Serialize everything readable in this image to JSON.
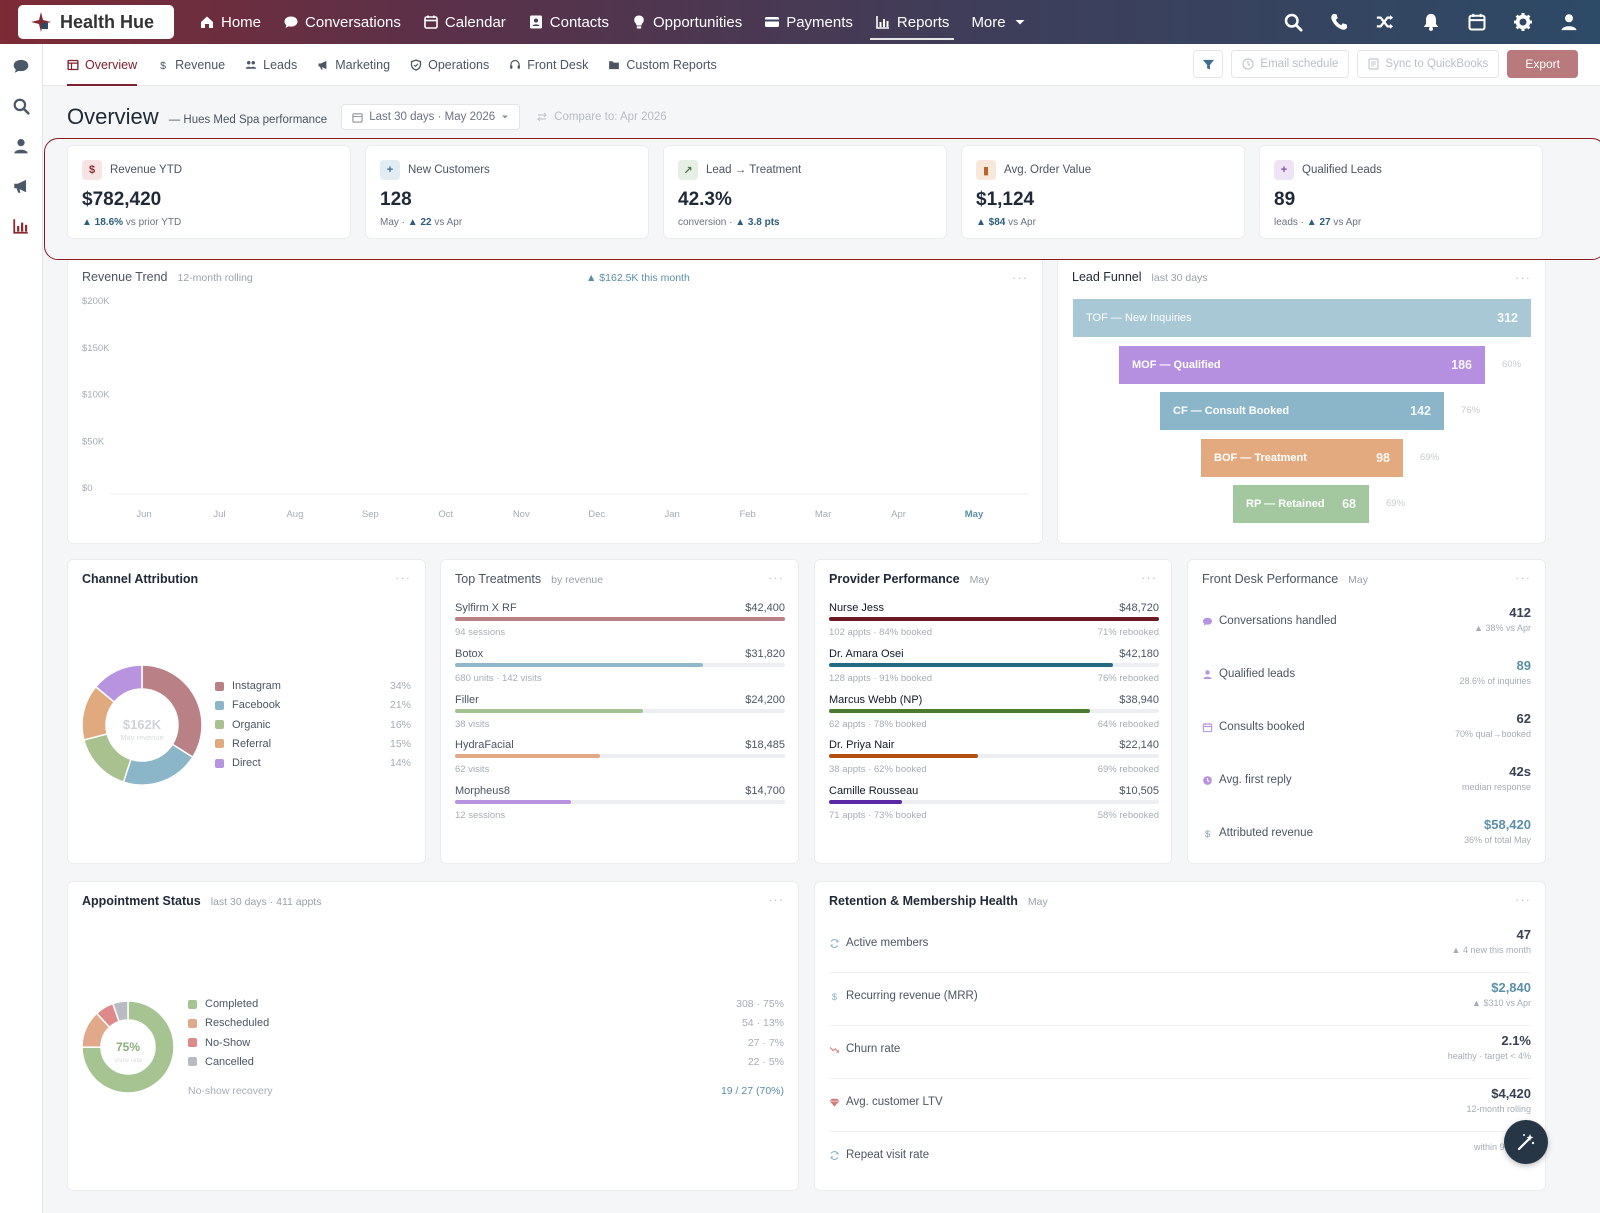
{
  "brand": {
    "name": "Health Hue"
  },
  "nav": [
    {
      "label": "Home",
      "icon": "home-icon"
    },
    {
      "label": "Conversations",
      "icon": "chat-icon"
    },
    {
      "label": "Calendar",
      "icon": "calendar-icon"
    },
    {
      "label": "Contacts",
      "icon": "contact-card-icon"
    },
    {
      "label": "Opportunities",
      "icon": "lightbulb-icon"
    },
    {
      "label": "Payments",
      "icon": "credit-card-icon"
    },
    {
      "label": "Reports",
      "icon": "bar-chart-icon",
      "active": true
    },
    {
      "label": "More",
      "icon": "chevron-down-icon"
    }
  ],
  "top_icons": [
    "search-icon",
    "phone-icon",
    "shuffle-icon",
    "bell-icon",
    "calendar-icon",
    "gear-icon",
    "user-icon"
  ],
  "rail_icons": [
    "chat-icon",
    "search-icon",
    "user-icon",
    "megaphone-icon",
    "bar-chart-icon"
  ],
  "tabs": [
    {
      "label": "Overview",
      "icon": "overview-icon",
      "active": true
    },
    {
      "label": "Revenue",
      "icon": "dollar-icon"
    },
    {
      "label": "Leads",
      "icon": "users-icon"
    },
    {
      "label": "Marketing",
      "icon": "megaphone-icon"
    },
    {
      "label": "Operations",
      "icon": "shield-icon"
    },
    {
      "label": "Front Desk",
      "icon": "headset-icon"
    },
    {
      "label": "Custom Reports",
      "icon": "folder-icon"
    }
  ],
  "actions": {
    "email_schedule": "Email schedule",
    "sync": "Sync to QuickBooks",
    "export": "Export"
  },
  "overview": {
    "title": "Overview",
    "subtitle": "— Hues Med Spa performance",
    "date_range": "Last 30 days · May 2026",
    "compare": "Compare to: Apr 2026"
  },
  "kpis": [
    {
      "label": "Revenue YTD",
      "icon": "$",
      "icon_bg": "#f6e3e4",
      "icon_fg": "#8c2a33",
      "value": "$782,420",
      "sub_pre": "",
      "sub_delta": "▲ 18.6%",
      "sub_post": " vs prior YTD"
    },
    {
      "label": "New Customers",
      "icon": "+",
      "icon_bg": "#e2edf3",
      "icon_fg": "#3f6f8f",
      "value": "128",
      "sub_pre": "May · ",
      "sub_delta": "▲ 22",
      "sub_post": " vs Apr"
    },
    {
      "label": "Lead → Treatment",
      "icon": "↗",
      "icon_bg": "#e5efe4",
      "icon_fg": "#4a7a45",
      "value": "42.3%",
      "sub_pre": "conversion · ",
      "sub_delta": "▲ 3.8 pts",
      "sub_post": ""
    },
    {
      "label": "Avg. Order Value",
      "icon": "▮",
      "icon_bg": "#f8e8dc",
      "icon_fg": "#b5652e",
      "value": "$1,124",
      "sub_pre": "",
      "sub_delta": "▲ $84",
      "sub_post": " vs Apr"
    },
    {
      "label": "Qualified Leads",
      "icon": "+",
      "icon_bg": "#efe4f6",
      "icon_fg": "#7c4ca8",
      "value": "89",
      "sub_pre": "leads · ",
      "sub_delta": "▲ 27",
      "sub_post": " vs Apr"
    }
  ],
  "revenue_trend": {
    "title": "Revenue Trend",
    "subtitle": "12-month rolling",
    "note": "▲ $162.5K this month"
  },
  "chart_data": [
    {
      "type": "line",
      "title": "Revenue Trend",
      "subtitle": "12-month rolling",
      "x": [
        "Jun",
        "Jul",
        "Aug",
        "Sep",
        "Oct",
        "Nov",
        "Dec",
        "Jan",
        "Feb",
        "Mar",
        "Apr",
        "May"
      ],
      "y_ticks": [
        "$200K",
        "$150K",
        "$100K",
        "$50K",
        "$0"
      ],
      "ylim": [
        0,
        200000
      ],
      "series": [],
      "grid": false
    },
    {
      "type": "bar",
      "title": "Lead Funnel",
      "subtitle": "last 30 days",
      "categories": [
        "TOF — New Inquiries",
        "MOF — Qualified",
        "CF — Consult Booked",
        "BOF — Treatment",
        "RP — Retained"
      ],
      "values": [
        312,
        186,
        142,
        98,
        68
      ],
      "rates": [
        "",
        "60%",
        "76%",
        "69%",
        "69%"
      ],
      "colors": [
        "#a9c8d6",
        "#b690e0",
        "#8bb6c9",
        "#e3aa80",
        "#a3c8a0"
      ]
    },
    {
      "type": "pie",
      "title": "Channel Attribution",
      "center_value": "$162K",
      "center_label": "May revenue",
      "categories": [
        "Instagram",
        "Facebook",
        "Organic",
        "Referral",
        "Direct"
      ],
      "values": [
        34,
        21,
        16,
        15,
        14
      ],
      "labels": [
        "34%",
        "21%",
        "16%",
        "15%",
        "14%"
      ],
      "colors": [
        "#b98085",
        "#8bb5c9",
        "#a9c18f",
        "#e0aa7e",
        "#b894e0"
      ]
    },
    {
      "type": "pie",
      "title": "Appointment Status",
      "subtitle": "last 30 days · 411 appts",
      "center_value": "75%",
      "center_label": "show rate",
      "categories": [
        "Completed",
        "Rescheduled",
        "No-Show",
        "Cancelled"
      ],
      "values": [
        308,
        54,
        27,
        22
      ],
      "labels": [
        "308 · 75%",
        "54 · 13%",
        "27 · 7%",
        "22 · 5%"
      ],
      "colors": [
        "#a5c492",
        "#e1a98a",
        "#de8a8a",
        "#b8bcc2"
      ]
    }
  ],
  "lead_funnel": {
    "title": "Lead Funnel",
    "subtitle": "last 30 days"
  },
  "channel": {
    "title": "Channel Attribution",
    "center_value": "$162K",
    "center_label": "May revenue"
  },
  "top_treatments": {
    "title": "Top Treatments",
    "subtitle": "by revenue",
    "items": [
      {
        "name": "Sylfirm X RF",
        "value": "$42,400",
        "sub": "94 sessions",
        "pct": 1.0,
        "color": "#b98085"
      },
      {
        "name": "Botox",
        "value": "$31,820",
        "sub": "680 units · 142 visits",
        "pct": 0.75,
        "color": "#8fb9cb"
      },
      {
        "name": "Filler",
        "value": "$24,200",
        "sub": "38 visits",
        "pct": 0.57,
        "color": "#a4c392"
      },
      {
        "name": "HydraFacial",
        "value": "$18,485",
        "sub": "62 visits",
        "pct": 0.44,
        "color": "#e1a985"
      },
      {
        "name": "Morpheus8",
        "value": "$14,700",
        "sub": "12 sessions",
        "pct": 0.35,
        "color": "#b894e0"
      }
    ]
  },
  "providers": {
    "title": "Provider Performance",
    "subtitle": "May",
    "items": [
      {
        "name": "Nurse Jess",
        "value": "$48,720",
        "sub": "102 appts · 84% booked",
        "rebook": "71% rebooked",
        "pct": 1.0,
        "color": "#6b1a23"
      },
      {
        "name": "Dr. Amara Osei",
        "value": "$42,180",
        "sub": "128 appts · 91% booked",
        "rebook": "76% rebooked",
        "pct": 0.86,
        "color": "#236b85"
      },
      {
        "name": "Marcus Webb (NP)",
        "value": "$38,940",
        "sub": "62 appts · 78% booked",
        "rebook": "64% rebooked",
        "pct": 0.79,
        "color": "#4b7a30"
      },
      {
        "name": "Dr. Priya Nair",
        "value": "$22,140",
        "sub": "38 appts · 62% booked",
        "rebook": "69% rebooked",
        "pct": 0.45,
        "color": "#b34f12"
      },
      {
        "name": "Camille Rousseau",
        "value": "$10,505",
        "sub": "71 appts · 73% booked",
        "rebook": "58% rebooked",
        "pct": 0.22,
        "color": "#5b2aa6"
      }
    ]
  },
  "front_desk": {
    "title": "Front Desk Performance",
    "subtitle": "May",
    "items": [
      {
        "label": "Conversations handled",
        "icon": "chat-icon",
        "icon_color": "#b894e0",
        "value": "412",
        "value_color": "#374151",
        "sub": "▲ 38% vs Apr"
      },
      {
        "label": "Qualified leads",
        "icon": "user-icon",
        "icon_color": "#b894e0",
        "value": "89",
        "value_color": "#5a8fa8",
        "sub": "28.6% of inquiries"
      },
      {
        "label": "Consults booked",
        "icon": "calendar-icon",
        "icon_color": "#b894e0",
        "value": "62",
        "value_color": "#374151",
        "sub": "70% qual→booked"
      },
      {
        "label": "Avg. first reply",
        "icon": "clock-icon",
        "icon_color": "#b894e0",
        "value": "42s",
        "value_color": "#374151",
        "sub": "median response"
      },
      {
        "label": "Attributed revenue",
        "icon": "dollar-icon",
        "icon_color": "#8aa0b3",
        "value": "$58,420",
        "value_color": "#5a8fa8",
        "sub": "36% of total May"
      }
    ]
  },
  "appointments": {
    "title": "Appointment Status",
    "subtitle": "last 30 days · 411 appts",
    "center_value": "75%",
    "center_label": "show rate",
    "recovery_label": "No-show recovery",
    "recovery_value": "19 / 27 (70%)"
  },
  "retention": {
    "title": "Retention & Membership Health",
    "subtitle": "May",
    "items": [
      {
        "label": "Active members",
        "icon": "refresh-icon",
        "value": "47",
        "value_color": "#374151",
        "sub": "▲ 4 new this month"
      },
      {
        "label": "Recurring revenue (MRR)",
        "icon": "dollar-icon",
        "value": "$2,840",
        "value_color": "#5a8fa8",
        "sub": "▲ $310 vs Apr"
      },
      {
        "label": "Churn rate",
        "icon": "trend-down-icon",
        "value": "2.1%",
        "value_color": "#374151",
        "sub": "healthy · target < 4%"
      },
      {
        "label": "Avg. customer LTV",
        "icon": "gem-icon",
        "value": "$4,420",
        "value_color": "#374151",
        "sub": "12-month rolling"
      },
      {
        "label": "Repeat visit rate",
        "icon": "refresh-icon",
        "value": "",
        "value_color": "#374151",
        "sub": "within 90 days"
      }
    ]
  }
}
